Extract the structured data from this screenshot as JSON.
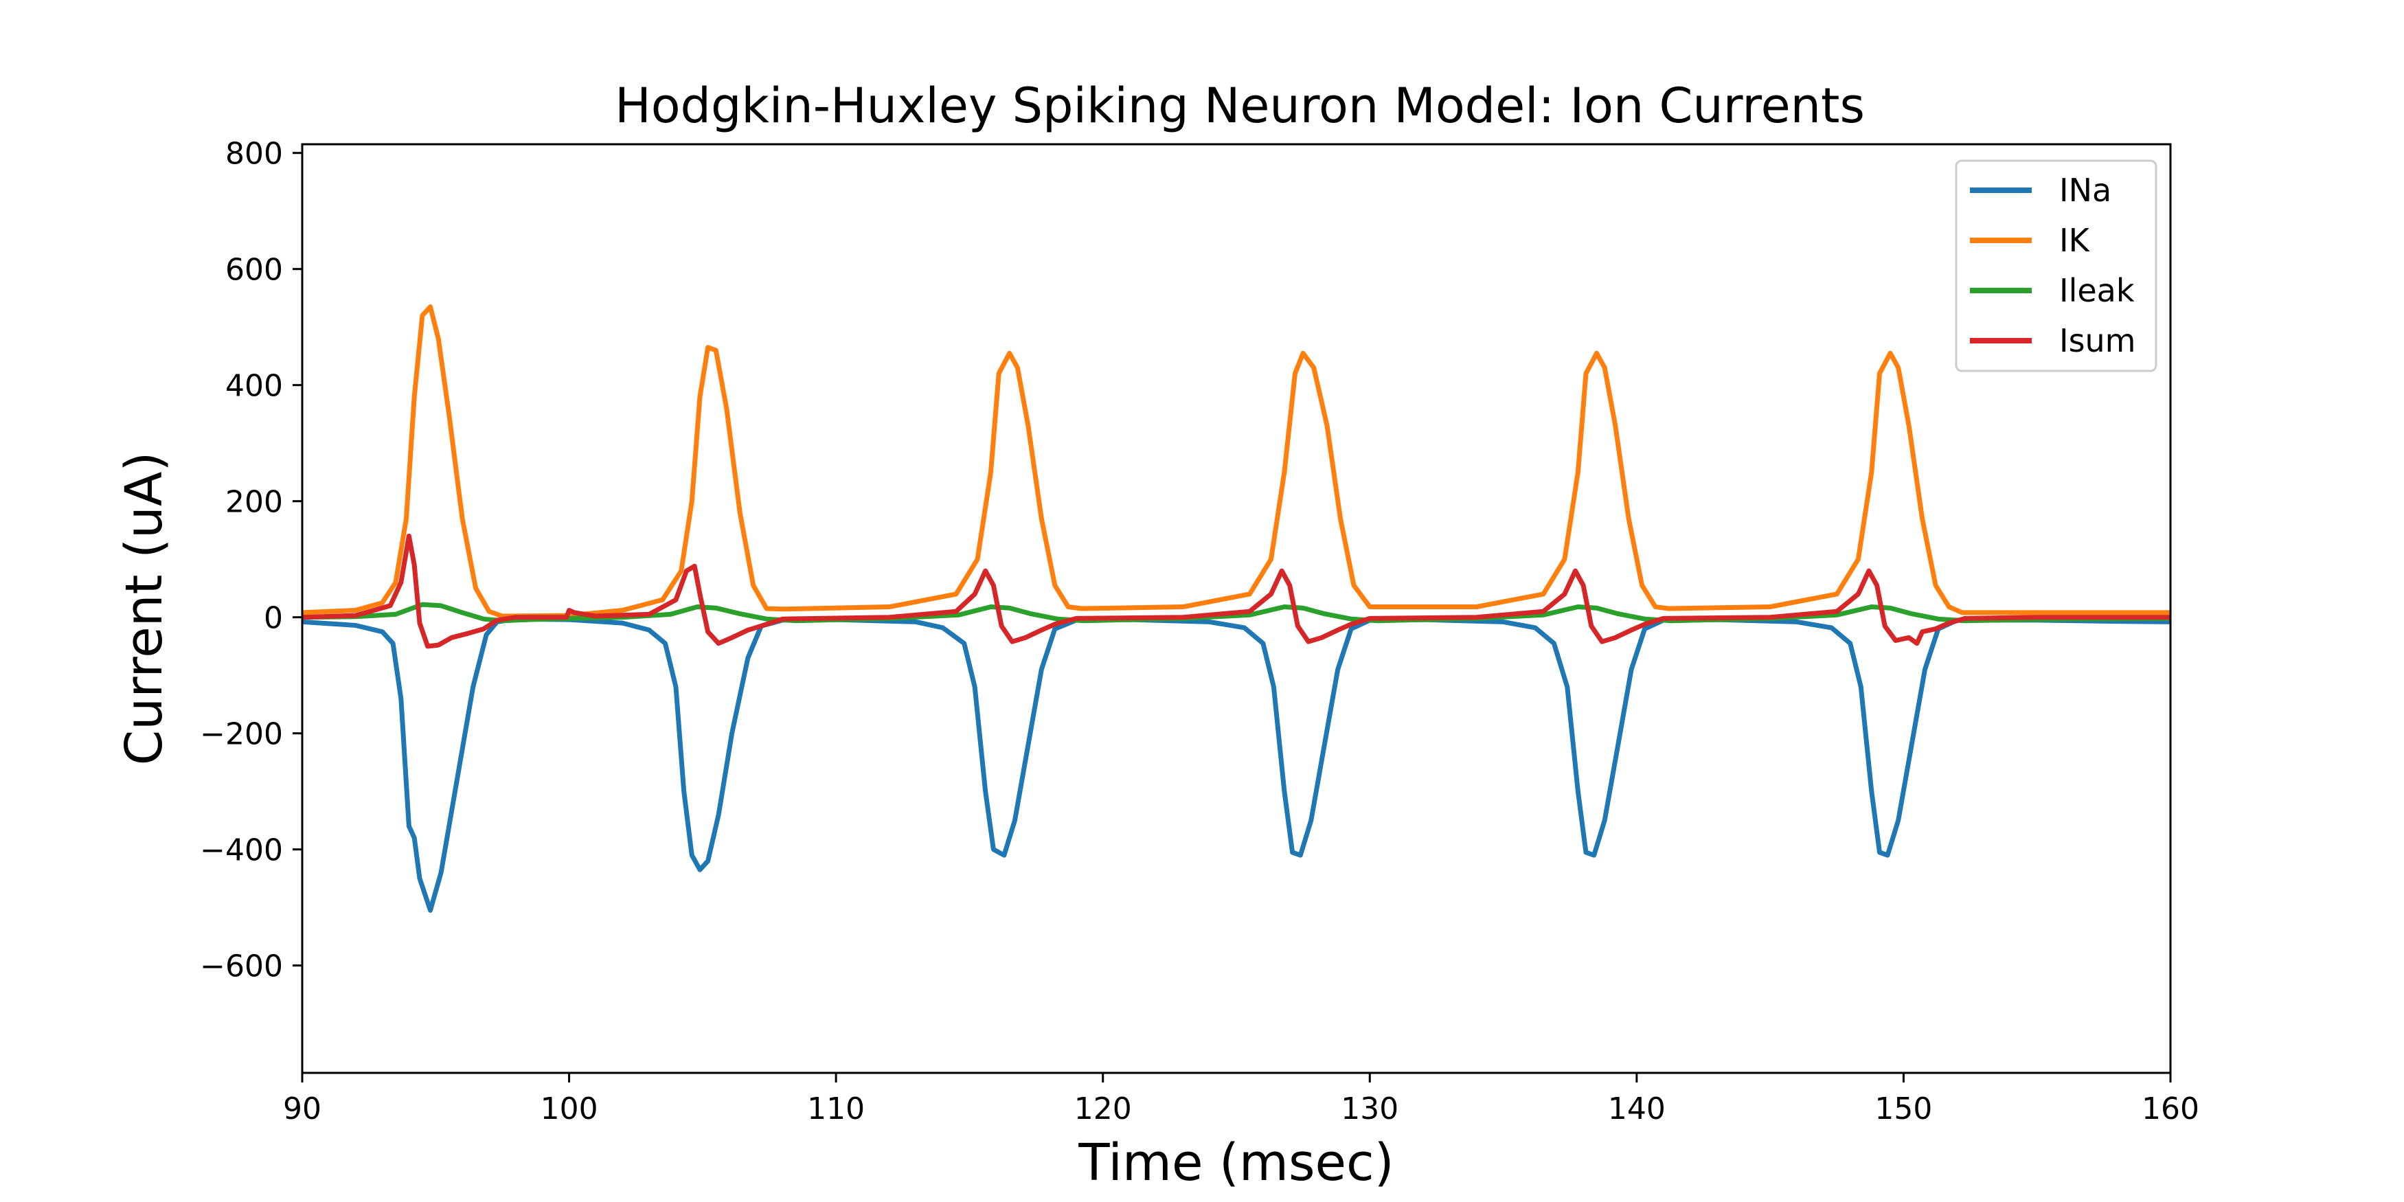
{
  "chart_data": {
    "type": "line",
    "title": "Hodgkin-Huxley Spiking Neuron Model: Ion Currents",
    "xlabel": "Time (msec)",
    "ylabel": "Current (uA)",
    "xlim": [
      90,
      160
    ],
    "ylim": [
      -785,
      815
    ],
    "xticks": [
      90,
      100,
      110,
      120,
      130,
      140,
      150,
      160
    ],
    "xtick_labels": [
      "90",
      "100",
      "110",
      "120",
      "130",
      "140",
      "150",
      "160"
    ],
    "yticks": [
      -600,
      -400,
      -200,
      0,
      200,
      400,
      600,
      800
    ],
    "ytick_labels": [
      "−600",
      "−400",
      "−200",
      "0",
      "200",
      "400",
      "600",
      "800"
    ],
    "grid": false,
    "legend_position": "top-right",
    "series": [
      {
        "name": "INa",
        "color": "#1f77b4",
        "x": [
          90,
          92,
          93,
          93.4,
          93.7,
          94.0,
          94.2,
          94.4,
          94.8,
          95.2,
          95.8,
          96.4,
          96.9,
          97.3,
          98,
          100,
          102,
          103,
          103.6,
          104.0,
          104.3,
          104.6,
          104.9,
          105.2,
          105.6,
          106.1,
          106.7,
          107.2,
          108,
          110,
          113,
          114,
          114.8,
          115.2,
          115.6,
          115.9,
          116.3,
          116.7,
          117.2,
          117.7,
          118.2,
          119,
          121,
          124,
          125.3,
          126.0,
          126.4,
          126.8,
          127.1,
          127.4,
          127.8,
          128.3,
          128.8,
          129.3,
          130,
          132,
          135,
          136.2,
          136.9,
          137.4,
          137.8,
          138.1,
          138.4,
          138.8,
          139.3,
          139.8,
          140.3,
          141,
          143,
          146,
          147.3,
          148.0,
          148.4,
          148.8,
          149.1,
          149.4,
          149.8,
          150.3,
          150.8,
          151.3,
          152,
          155,
          158,
          160
        ],
        "y": [
          -8,
          -14,
          -25,
          -45,
          -140,
          -360,
          -380,
          -450,
          -505,
          -440,
          -280,
          -120,
          -30,
          -8,
          -3,
          -4,
          -10,
          -22,
          -45,
          -120,
          -300,
          -410,
          -435,
          -420,
          -340,
          -200,
          -70,
          -15,
          -5,
          -4,
          -8,
          -18,
          -45,
          -120,
          -300,
          -400,
          -410,
          -350,
          -220,
          -90,
          -20,
          -5,
          -4,
          -8,
          -18,
          -45,
          -120,
          -300,
          -405,
          -410,
          -350,
          -220,
          -90,
          -20,
          -5,
          -4,
          -8,
          -18,
          -45,
          -120,
          -300,
          -405,
          -410,
          -350,
          -220,
          -90,
          -20,
          -5,
          -4,
          -8,
          -18,
          -45,
          -120,
          -300,
          -405,
          -410,
          -350,
          -220,
          -90,
          -20,
          -5,
          -5,
          -7,
          -8
        ]
      },
      {
        "name": "IK",
        "color": "#ff7f0e",
        "x": [
          90,
          92,
          93,
          93.5,
          93.9,
          94.2,
          94.5,
          94.8,
          95.1,
          95.5,
          96.0,
          96.5,
          97.0,
          97.5,
          100,
          102,
          103.5,
          104.2,
          104.6,
          104.9,
          105.2,
          105.5,
          105.9,
          106.4,
          106.9,
          107.4,
          108,
          112,
          114.5,
          115.3,
          115.8,
          116.1,
          116.5,
          116.8,
          117.2,
          117.7,
          118.2,
          118.7,
          119.2,
          123,
          125.5,
          126.3,
          126.8,
          127.2,
          127.5,
          127.9,
          128.4,
          128.9,
          129.4,
          130,
          134,
          136.5,
          137.3,
          137.8,
          138.1,
          138.5,
          138.8,
          139.2,
          139.7,
          140.2,
          140.7,
          141.2,
          145,
          147.5,
          148.3,
          148.8,
          149.1,
          149.5,
          149.8,
          150.2,
          150.7,
          151.2,
          151.7,
          152.2,
          156,
          160
        ],
        "y": [
          8,
          12,
          25,
          60,
          170,
          380,
          520,
          535,
          480,
          350,
          170,
          50,
          10,
          2,
          3,
          12,
          30,
          80,
          200,
          380,
          465,
          460,
          360,
          180,
          55,
          15,
          14,
          18,
          40,
          100,
          250,
          420,
          455,
          430,
          330,
          170,
          55,
          18,
          15,
          18,
          40,
          100,
          250,
          420,
          455,
          430,
          330,
          170,
          55,
          18,
          18,
          40,
          100,
          250,
          420,
          455,
          430,
          330,
          170,
          55,
          18,
          15,
          18,
          40,
          100,
          250,
          420,
          455,
          430,
          330,
          170,
          55,
          18,
          8,
          8,
          8
        ]
      },
      {
        "name": "Ileak",
        "color": "#2ca02c",
        "x": [
          90,
          92,
          93.5,
          94.5,
          95.2,
          96.0,
          96.8,
          97.5,
          98.5,
          100,
          102,
          103.8,
          104.8,
          105.5,
          106.4,
          107.4,
          108.5,
          112,
          114.6,
          115.8,
          116.5,
          117.3,
          118.3,
          119.3,
          123,
          125.5,
          126.8,
          127.5,
          128.3,
          129.3,
          130.3,
          134,
          136.5,
          137.8,
          138.5,
          139.3,
          140.3,
          141.3,
          145,
          147.5,
          148.8,
          149.5,
          150.3,
          151.3,
          152.3,
          156,
          160
        ],
        "y": [
          0,
          1,
          5,
          22,
          20,
          8,
          -3,
          -6,
          -4,
          -2,
          0,
          5,
          18,
          16,
          6,
          -3,
          -6,
          -2,
          4,
          18,
          16,
          6,
          -3,
          -6,
          -2,
          4,
          18,
          16,
          6,
          -3,
          -6,
          -2,
          4,
          18,
          16,
          6,
          -3,
          -6,
          -2,
          4,
          18,
          16,
          6,
          -3,
          -6,
          -3,
          -2
        ]
      },
      {
        "name": "Isum",
        "color": "#d62728",
        "x": [
          90,
          92,
          93.3,
          93.7,
          94.0,
          94.2,
          94.4,
          94.7,
          95.1,
          95.6,
          96.2,
          96.8,
          97.3,
          98,
          99.9,
          100.0,
          100.2,
          101,
          103,
          104.0,
          104.4,
          104.7,
          104.9,
          105.2,
          105.6,
          106.1,
          106.7,
          107.2,
          108,
          112,
          114.5,
          115.2,
          115.6,
          115.9,
          116.2,
          116.6,
          117.1,
          117.7,
          118.2,
          119,
          123,
          125.5,
          126.3,
          126.7,
          127.0,
          127.3,
          127.7,
          128.2,
          128.8,
          129.3,
          130,
          134,
          136.5,
          137.3,
          137.7,
          138.0,
          138.3,
          138.7,
          139.2,
          139.8,
          140.3,
          141,
          145,
          147.5,
          148.3,
          148.7,
          149.0,
          149.3,
          149.7,
          150.2,
          150.5,
          150.7,
          151.2,
          151.7,
          152.3,
          155,
          160
        ],
        "y": [
          0,
          3,
          20,
          60,
          140,
          90,
          -10,
          -50,
          -48,
          -35,
          -28,
          -20,
          -5,
          0,
          0,
          12,
          8,
          2,
          5,
          30,
          80,
          88,
          40,
          -25,
          -45,
          -35,
          -22,
          -15,
          -3,
          0,
          10,
          40,
          80,
          55,
          -15,
          -42,
          -35,
          -22,
          -12,
          -2,
          0,
          10,
          40,
          80,
          55,
          -15,
          -42,
          -35,
          -22,
          -12,
          -2,
          0,
          10,
          40,
          80,
          55,
          -15,
          -42,
          -35,
          -22,
          -12,
          -2,
          0,
          10,
          40,
          80,
          55,
          -15,
          -40,
          -35,
          -45,
          -25,
          -20,
          -10,
          -2,
          0,
          0
        ]
      }
    ]
  }
}
